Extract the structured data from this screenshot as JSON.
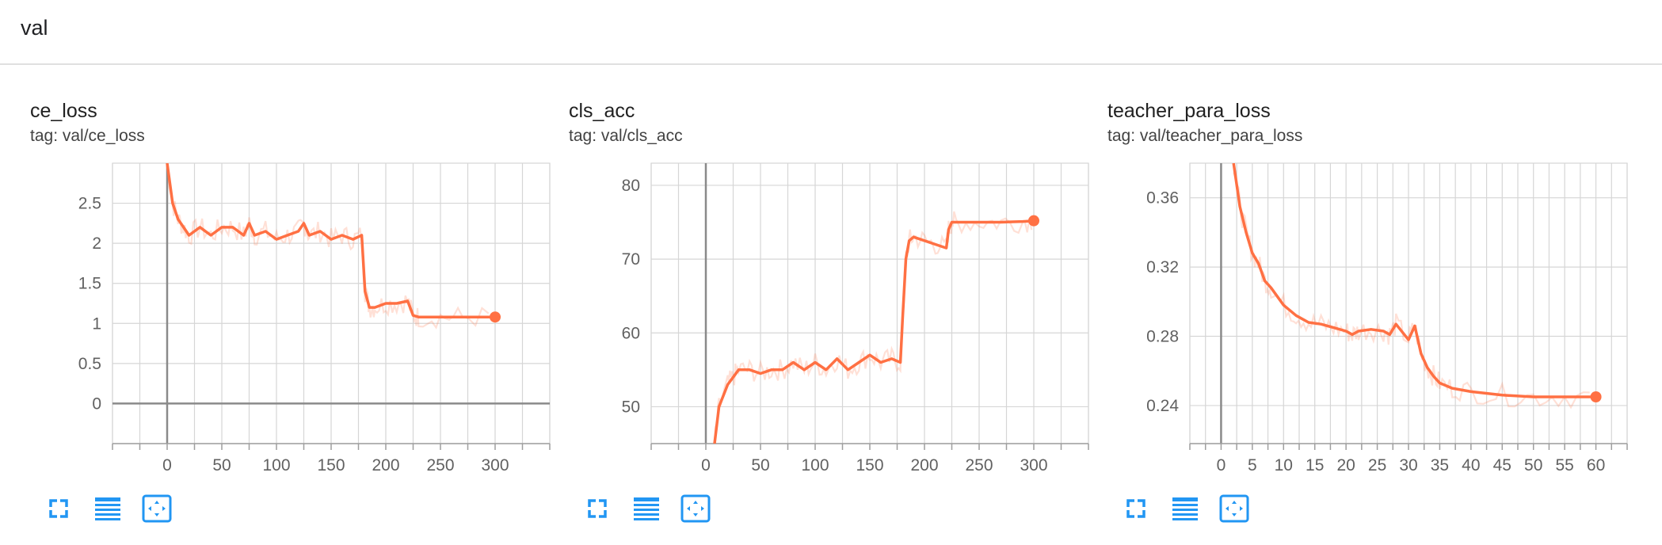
{
  "group": {
    "title": "val"
  },
  "accent_color": "#ff7043",
  "toolbar_icons": [
    "fullscreen-icon",
    "data-table-icon",
    "fit-domain-icon"
  ],
  "chart_data": [
    {
      "type": "line",
      "title": "ce_loss",
      "tag": "tag: val/ce_loss",
      "xlim": [
        -50,
        350
      ],
      "ylim": [
        -0.5,
        3.0
      ],
      "xticks": [
        0,
        50,
        100,
        150,
        200,
        250,
        300
      ],
      "xtick_labels": [
        "0",
        "50",
        "100",
        "150",
        "200",
        "250",
        "300"
      ],
      "yticks": [
        0,
        0.5,
        1,
        1.5,
        2,
        2.5
      ],
      "ytick_labels": [
        "0",
        "0.5",
        "1",
        "1.5",
        "2",
        "2.5"
      ],
      "grid": true,
      "series": [
        {
          "x": [
            0,
            5,
            10,
            15,
            20,
            30,
            40,
            50,
            60,
            70,
            75,
            80,
            90,
            100,
            110,
            120,
            125,
            130,
            140,
            150,
            160,
            170,
            178,
            181,
            185,
            190,
            200,
            210,
            220,
            225,
            230,
            250,
            270,
            300
          ],
          "y": [
            3.0,
            2.5,
            2.3,
            2.2,
            2.1,
            2.2,
            2.1,
            2.2,
            2.2,
            2.1,
            2.25,
            2.1,
            2.15,
            2.05,
            2.1,
            2.15,
            2.25,
            2.1,
            2.15,
            2.05,
            2.1,
            2.05,
            2.1,
            1.4,
            1.2,
            1.2,
            1.25,
            1.25,
            1.28,
            1.1,
            1.08,
            1.08,
            1.08,
            1.08
          ]
        }
      ]
    },
    {
      "type": "line",
      "title": "cls_acc",
      "tag": "tag: val/cls_acc",
      "xlim": [
        -50,
        350
      ],
      "ylim": [
        45,
        83
      ],
      "xticks": [
        0,
        50,
        100,
        150,
        200,
        250,
        300
      ],
      "xtick_labels": [
        "0",
        "50",
        "100",
        "150",
        "200",
        "250",
        "300"
      ],
      "yticks": [
        50,
        60,
        70,
        80
      ],
      "ytick_labels": [
        "50",
        "60",
        "70",
        "80"
      ],
      "grid": true,
      "series": [
        {
          "x": [
            8,
            12,
            20,
            25,
            30,
            40,
            50,
            60,
            70,
            80,
            90,
            100,
            110,
            120,
            130,
            140,
            150,
            160,
            170,
            178,
            180,
            183,
            186,
            190,
            200,
            210,
            220,
            222,
            225,
            230,
            250,
            270,
            290,
            300
          ],
          "y": [
            45,
            50,
            53,
            54,
            55,
            55,
            54.5,
            55,
            55,
            56,
            55,
            56,
            55,
            56.5,
            55,
            56,
            57,
            56,
            56.5,
            56,
            62,
            70,
            72.5,
            73,
            72.5,
            72,
            71.5,
            74,
            75,
            75,
            75,
            75,
            75.1,
            75.2
          ]
        }
      ]
    },
    {
      "type": "line",
      "title": "teacher_para_loss",
      "tag": "tag: val/teacher_para_loss",
      "xlim": [
        -5,
        65
      ],
      "ylim": [
        0.218,
        0.38
      ],
      "xticks": [
        0,
        5,
        10,
        15,
        20,
        25,
        30,
        35,
        40,
        45,
        50,
        55,
        60
      ],
      "xtick_labels": [
        "0",
        "5",
        "10",
        "15",
        "20",
        "25",
        "30",
        "35",
        "40",
        "45",
        "50",
        "55",
        "60"
      ],
      "yticks": [
        0.24,
        0.28,
        0.32,
        0.36
      ],
      "ytick_labels": [
        "0.24",
        "0.28",
        "0.32",
        "0.36"
      ],
      "grid": true,
      "series": [
        {
          "x": [
            2,
            3,
            4,
            5,
            6,
            7,
            8,
            10,
            12,
            14,
            16,
            18,
            20,
            21,
            22,
            24,
            26,
            27,
            28,
            30,
            31,
            32,
            33,
            34,
            35,
            37,
            40,
            45,
            50,
            55,
            60
          ],
          "y": [
            0.38,
            0.355,
            0.34,
            0.328,
            0.322,
            0.312,
            0.308,
            0.298,
            0.292,
            0.288,
            0.287,
            0.285,
            0.283,
            0.281,
            0.283,
            0.284,
            0.283,
            0.281,
            0.287,
            0.278,
            0.286,
            0.27,
            0.262,
            0.257,
            0.253,
            0.25,
            0.248,
            0.246,
            0.245,
            0.245,
            0.245
          ]
        }
      ]
    }
  ]
}
